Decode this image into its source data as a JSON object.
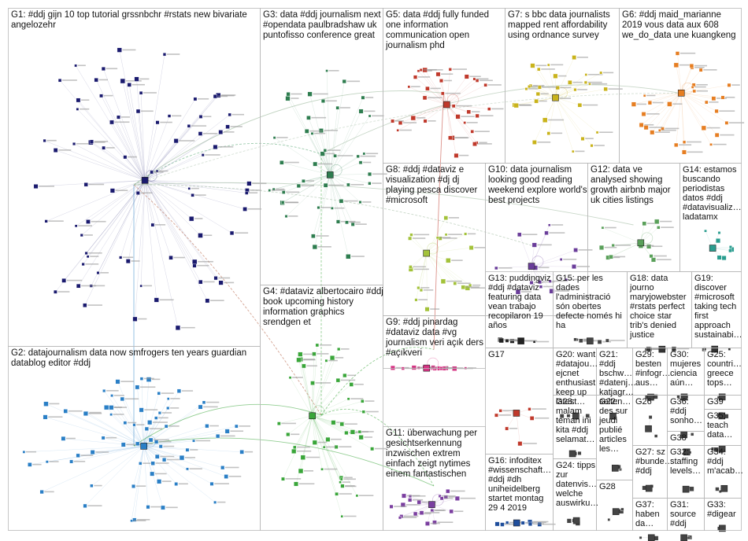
{
  "title": "",
  "groups": [
    {
      "id": "G1",
      "lines": [
        "G1: #ddj gijn 10 top tutorial grssnbchr #rstats new bivariate",
        "angelozehr"
      ],
      "color": "#1a1a6e",
      "nodes": 80
    },
    {
      "id": "G2",
      "lines": [
        "G2: datajournalism data now smfrogers ten years guardian",
        "datablog editor #ddj"
      ],
      "color": "#2a7fc6",
      "nodes": 70
    },
    {
      "id": "G3",
      "lines": [
        "G3: data #ddj journalism next",
        "#opendata paulbradshaw uk",
        "puntofisso conference great"
      ],
      "color": "#2e7d4f",
      "nodes": 45
    },
    {
      "id": "G4",
      "lines": [
        "G4: #dataviz albertocairo #ddj",
        "book upcoming history",
        "information graphics",
        "srendgen et"
      ],
      "color": "#3aa63a",
      "nodes": 45
    },
    {
      "id": "G5",
      "lines": [
        "G5: data #ddj fully funded",
        "one information",
        "communication open",
        "journalism phd"
      ],
      "color": "#c0392b",
      "nodes": 32
    },
    {
      "id": "G6",
      "lines": [
        "G6: #ddj maid_marianne",
        "2019 vous data aux 608",
        "we_do_data une kuangkeng"
      ],
      "color": "#e67e22",
      "nodes": 30
    },
    {
      "id": "G7",
      "lines": [
        "G7: s bbc data journalists",
        "mapped rent affordability",
        "using ordnance survey"
      ],
      "color": "#c9b31b",
      "nodes": 30
    },
    {
      "id": "G8",
      "lines": [
        "G8: #ddj #dataviz e",
        "visualization #dj dj",
        "playing pesca discover",
        "#microsoft"
      ],
      "color": "#a3c23a",
      "nodes": 20
    },
    {
      "id": "G9",
      "lines": [
        "G9: #ddj pinardag",
        "#dataviz data #vg",
        "journalism veri açık ders",
        "#açıkveri"
      ],
      "color": "#d63384",
      "nodes": 16
    },
    {
      "id": "G10",
      "lines": [
        "G10: data journalism",
        "looking good reading",
        "weekend explore world's",
        "best projects"
      ],
      "color": "#6a3d9a",
      "nodes": 16
    },
    {
      "id": "G11",
      "lines": [
        "G11: überwachung per",
        "gesichtserkennung",
        "inzwischen extrem",
        "einfach zeigt nytimes",
        "einem fantastischen"
      ],
      "color": "#7b3fa0",
      "nodes": 20
    },
    {
      "id": "G12",
      "lines": [
        "G12: data ve",
        "analysed showing",
        "growth airbnb major",
        "uk cities listings"
      ],
      "color": "#5aa05a",
      "nodes": 12
    },
    {
      "id": "G13",
      "lines": [
        "G13: puddingviz",
        "#ddj #dataviz",
        "featuring data",
        "vean trabajo",
        "recopilaron 19",
        "años"
      ],
      "color": "#222222",
      "nodes": 7
    },
    {
      "id": "G14",
      "lines": [
        "G14: estamos",
        "buscando",
        "periodistas",
        "datos #ddj",
        "#datavisualiz…",
        "ladatamx"
      ],
      "color": "#2a9d8f",
      "nodes": 8
    },
    {
      "id": "G15",
      "lines": [
        "G15: per les",
        "dades",
        "l'administració",
        "són obertes",
        "defecte només hi",
        "ha"
      ],
      "color": "#444444",
      "nodes": 6
    },
    {
      "id": "G16",
      "lines": [
        "G16: infoditex",
        "#wissenschaft…",
        "#ddj #dh",
        "uniheidelberg",
        "startet montag",
        "29 4 2019"
      ],
      "color": "#1f4e9c",
      "nodes": 8
    },
    {
      "id": "G17",
      "lines": [
        "G17"
      ],
      "color": "#c0392b",
      "nodes": 6
    },
    {
      "id": "G18",
      "lines": [
        "G18: data",
        "journo",
        "maryjowebster",
        "#rstats perfect",
        "choice star",
        "trib's denied",
        "justice"
      ],
      "color": "#333333",
      "nodes": 4
    },
    {
      "id": "G19",
      "lines": [
        "G19:",
        "discover",
        "#microsoft",
        "taking tech",
        "first",
        "approach",
        "sustainabi…"
      ],
      "color": "#333333",
      "nodes": 4
    },
    {
      "id": "G20",
      "lines": [
        "G20: want",
        "#datajou…",
        "ejcnet",
        "enthusiast",
        "keep up",
        "latest…"
      ],
      "color": "#444444",
      "nodes": 4
    },
    {
      "id": "G21",
      "lines": [
        "G21:",
        "#ddj",
        "bschw…",
        "#datenj…",
        "katjagr…",
        "selten…"
      ],
      "color": "#444444",
      "nodes": 3
    },
    {
      "id": "G22",
      "lines": [
        "G22:",
        "des sur",
        "jeudi",
        "publié",
        "articles",
        "les…"
      ],
      "color": "#444444",
      "nodes": 3
    },
    {
      "id": "G23",
      "lines": [
        "G23:",
        "malam",
        "teman ini",
        "kita #ddj",
        "selamat…"
      ],
      "color": "#444444",
      "nodes": 3
    },
    {
      "id": "G24",
      "lines": [
        "G24: tipps",
        "zur",
        "datenvis…",
        "welche",
        "auswirku…"
      ],
      "color": "#444444",
      "nodes": 3
    },
    {
      "id": "G25",
      "lines": [
        "G25:",
        "countri…",
        "greece",
        "tops…"
      ],
      "color": "#444444",
      "nodes": 2
    },
    {
      "id": "G26",
      "lines": [
        "G26"
      ],
      "color": "#444444",
      "nodes": 3
    },
    {
      "id": "G27",
      "lines": [
        "G27: sz",
        "#bunde…",
        "#ddj"
      ],
      "color": "#444444",
      "nodes": 2
    },
    {
      "id": "G28",
      "lines": [
        "G28"
      ],
      "color": "#444444",
      "nodes": 3
    },
    {
      "id": "G29",
      "lines": [
        "G29:",
        "besten",
        "#infogr…",
        "aus…"
      ],
      "color": "#444444",
      "nodes": 2
    },
    {
      "id": "G30",
      "lines": [
        "G30:",
        "mujeres",
        "ciencia",
        "aún…"
      ],
      "color": "#444444",
      "nodes": 2
    },
    {
      "id": "G31",
      "lines": [
        "G31:",
        "source",
        "#ddj"
      ],
      "color": "#444444",
      "nodes": 2
    },
    {
      "id": "G32",
      "lines": [
        "G32:",
        "staffing",
        "levels…"
      ],
      "color": "#444444",
      "nodes": 2
    },
    {
      "id": "G33",
      "lines": [
        "G33:",
        "#digear"
      ],
      "color": "#444444",
      "nodes": 2
    },
    {
      "id": "G34",
      "lines": [
        "G34:",
        "#ddj",
        "m'acab…"
      ],
      "color": "#444444",
      "nodes": 2
    },
    {
      "id": "G35",
      "lines": [
        "G35:",
        "teach",
        "data…"
      ],
      "color": "#444444",
      "nodes": 2
    },
    {
      "id": "G36",
      "lines": [
        "G36:",
        "#ddj",
        "sonho…"
      ],
      "color": "#444444",
      "nodes": 2
    },
    {
      "id": "G37",
      "lines": [
        "G37:",
        "haben",
        "da…"
      ],
      "color": "#444444",
      "nodes": 2
    },
    {
      "id": "G38",
      "lines": [
        "G38"
      ],
      "color": "#444444",
      "nodes": 2
    },
    {
      "id": "G39",
      "lines": [
        "G39"
      ],
      "color": "#444444",
      "nodes": 2
    }
  ]
}
